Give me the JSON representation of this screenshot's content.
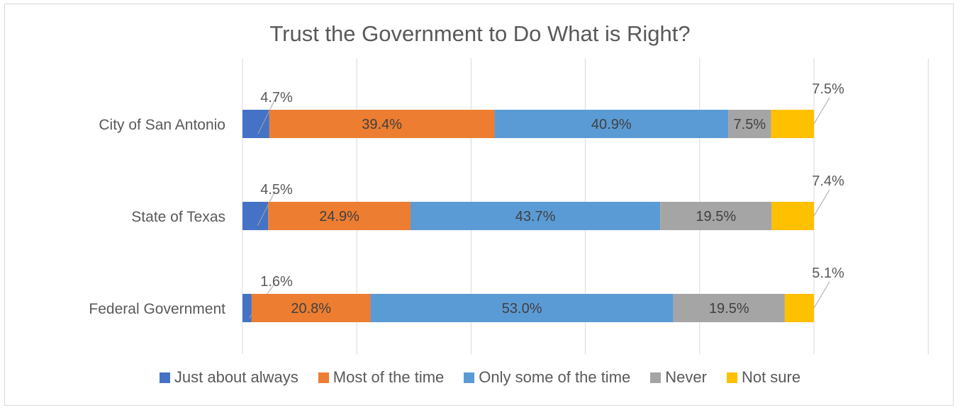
{
  "chart_data": {
    "type": "bar",
    "orientation": "horizontal",
    "stacked": true,
    "title": "Trust the Government to Do What is Right?",
    "categories": [
      "City of San Antonio",
      "State of Texas",
      "Federal Government"
    ],
    "series": [
      {
        "name": "Just about always",
        "color": "#4472C4",
        "values": [
          4.7,
          4.5,
          1.6
        ],
        "labels": [
          "4.7%",
          "4.5%",
          "1.6%"
        ]
      },
      {
        "name": "Most of the time",
        "color": "#ED7D31",
        "values": [
          39.4,
          24.9,
          20.8
        ],
        "labels": [
          "39.4%",
          "24.9%",
          "20.8%"
        ]
      },
      {
        "name": "Only some of the time",
        "color": "#5B9BD5",
        "values": [
          40.9,
          43.7,
          53.0
        ],
        "labels": [
          "40.9%",
          "43.7%",
          "53.0%"
        ]
      },
      {
        "name": "Never",
        "color": "#A5A5A5",
        "values": [
          7.5,
          19.5,
          19.5
        ],
        "labels": [
          "7.5%",
          "19.5%",
          "19.5%"
        ]
      },
      {
        "name": "Not sure",
        "color": "#FFC000",
        "values": [
          7.5,
          7.4,
          5.1
        ],
        "labels": [
          "7.5%",
          "7.4%",
          "5.1%"
        ]
      }
    ],
    "xlim": [
      0,
      120
    ],
    "grid": true,
    "legend_position": "bottom"
  }
}
